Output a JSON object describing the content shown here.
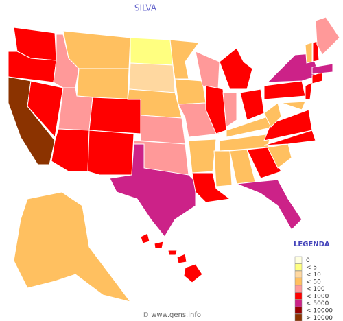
{
  "title": "SILVA",
  "legend": {
    "title": "LEGENDA",
    "items": [
      {
        "label": "0",
        "color": "#ffffe0"
      },
      {
        "label": "< 5",
        "color": "#ffff80"
      },
      {
        "label": "< 10",
        "color": "#ffd8a0"
      },
      {
        "label": "< 50",
        "color": "#ffc060"
      },
      {
        "label": "< 100",
        "color": "#ff9999"
      },
      {
        "label": "< 1000",
        "color": "#ff0000"
      },
      {
        "label": "< 5000",
        "color": "#cc2288"
      },
      {
        "label": "< 10000",
        "color": "#990000"
      },
      {
        "label": "> 10000",
        "color": "#8b3300"
      }
    ]
  },
  "footer": "© www.gens.info"
}
